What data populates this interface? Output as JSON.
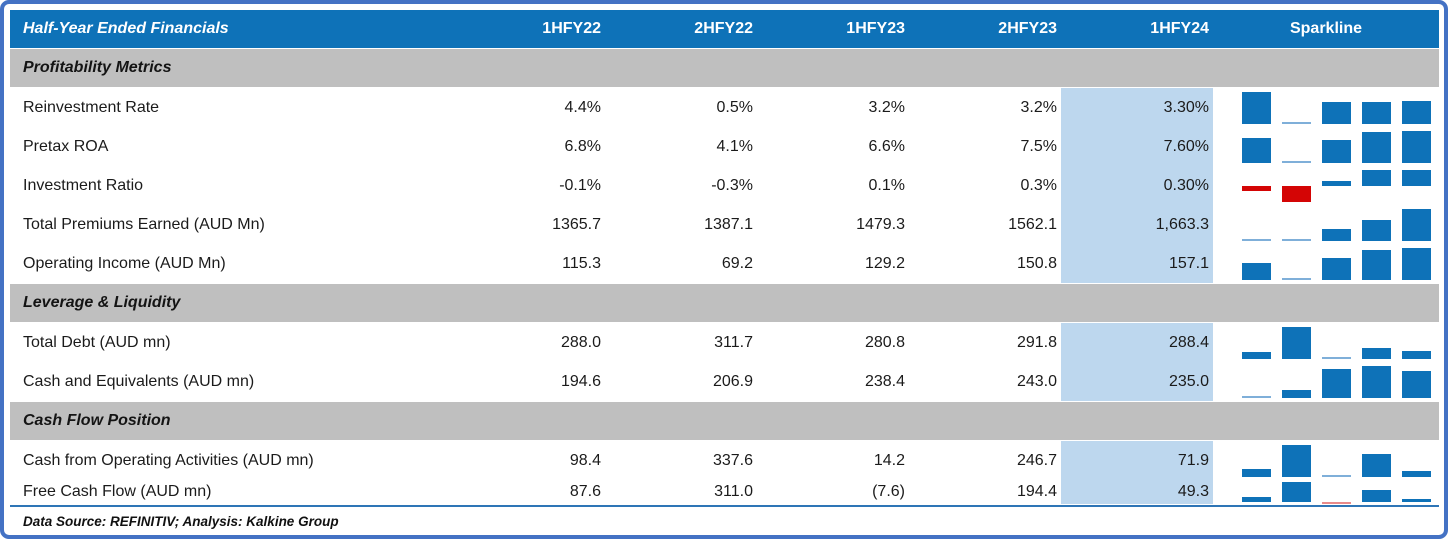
{
  "footer": "Data Source: REFINITIV; Analysis: Kalkine Group",
  "colors": {
    "header_bg": "#0E72B8",
    "section_bg": "#BFBFBF",
    "highlight_bg": "#BDD7EE",
    "spark_pos": "#0E72B8",
    "spark_pos_thin": "#7FAFD9",
    "spark_neg": "#D40505",
    "spark_neg_thin": "#E98A8A",
    "frame": "#4472C4",
    "rule": "#2E75B6"
  },
  "chart_data": {
    "type": "table",
    "title": "Half-Year Ended Financials",
    "columns": [
      "1HFY22",
      "2HFY22",
      "1HFY23",
      "2HFY23",
      "1HFY24"
    ],
    "sparkline_header": "Sparkline",
    "highlight_column": "1HFY24",
    "sparkline_style": {
      "type": "bar",
      "scale": "per-row min-max, zero axis when negatives present",
      "positive_color": "#0E72B8",
      "negative_color": "#D40505"
    },
    "rows": [
      {
        "type": "section",
        "label": "Profitability Metrics"
      },
      {
        "type": "data",
        "label": "Reinvestment Rate",
        "display": [
          "4.4%",
          "0.5%",
          "3.2%",
          "3.2%",
          "3.30%"
        ],
        "values": [
          4.4,
          0.5,
          3.2,
          3.2,
          3.3
        ]
      },
      {
        "type": "data",
        "label": "Pretax ROA",
        "display": [
          "6.8%",
          "4.1%",
          "6.6%",
          "7.5%",
          "7.60%"
        ],
        "values": [
          6.8,
          4.1,
          6.6,
          7.5,
          7.6
        ]
      },
      {
        "type": "data",
        "label": "Investment Ratio",
        "display": [
          "-0.1%",
          "-0.3%",
          "0.1%",
          "0.3%",
          "0.30%"
        ],
        "values": [
          -0.1,
          -0.3,
          0.1,
          0.3,
          0.3
        ]
      },
      {
        "type": "data",
        "label": "Total Premiums Earned (AUD Mn)",
        "display": [
          "1365.7",
          "1387.1",
          "1479.3",
          "1562.1",
          "1,663.3"
        ],
        "values": [
          1365.7,
          1387.1,
          1479.3,
          1562.1,
          1663.3
        ]
      },
      {
        "type": "data",
        "label": "Operating Income (AUD Mn)",
        "display": [
          "115.3",
          "69.2",
          "129.2",
          "150.8",
          "157.1"
        ],
        "values": [
          115.3,
          69.2,
          129.2,
          150.8,
          157.1
        ]
      },
      {
        "type": "section",
        "label": "Leverage & Liquidity"
      },
      {
        "type": "data",
        "label": "Total Debt (AUD mn)",
        "display": [
          "288.0",
          "311.7",
          "280.8",
          "291.8",
          "288.4"
        ],
        "values": [
          288.0,
          311.7,
          280.8,
          291.8,
          288.4
        ]
      },
      {
        "type": "data",
        "label": "Cash and Equivalents (AUD mn)",
        "display": [
          "194.6",
          "206.9",
          "238.4",
          "243.0",
          "235.0"
        ],
        "values": [
          194.6,
          206.9,
          238.4,
          243.0,
          235.0
        ]
      },
      {
        "type": "section",
        "label": "Cash Flow Position"
      },
      {
        "type": "data",
        "label": "Cash from Operating Activities (AUD mn)",
        "display": [
          "98.4",
          "337.6",
          "14.2",
          "246.7",
          "71.9"
        ],
        "values": [
          98.4,
          337.6,
          14.2,
          246.7,
          71.9
        ]
      },
      {
        "type": "data",
        "label": "Free Cash Flow (AUD mn)",
        "display": [
          "87.6",
          "311.0",
          "(7.6)",
          "194.4",
          "49.3"
        ],
        "values": [
          87.6,
          311.0,
          -7.6,
          194.4,
          49.3
        ]
      }
    ]
  }
}
